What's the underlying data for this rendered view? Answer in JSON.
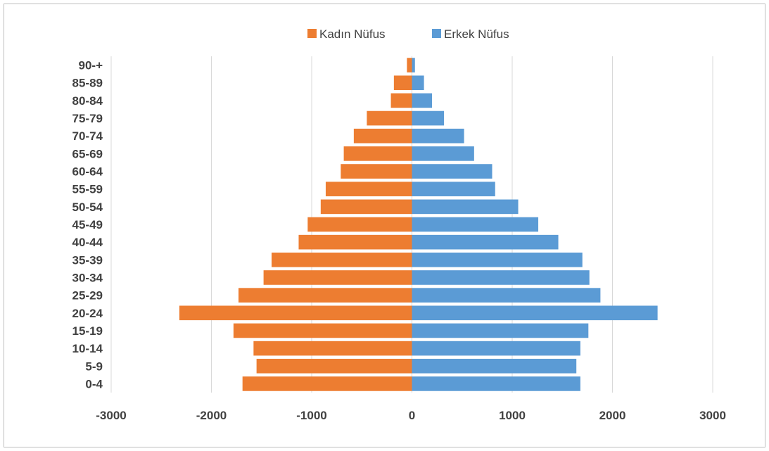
{
  "chart_data": {
    "type": "bar",
    "orientation": "horizontal",
    "categories": [
      "0-4",
      "5-9",
      "10-14",
      "15-19",
      "20-24",
      "25-29",
      "30-34",
      "35-39",
      "40-44",
      "45-49",
      "50-54",
      "55-59",
      "60-64",
      "65-69",
      "70-74",
      "75-79",
      "80-84",
      "85-89",
      "90-+"
    ],
    "series": [
      {
        "name": "Kadın Nüfus",
        "color": "#ed7d31",
        "values": [
          -1690,
          -1550,
          -1580,
          -1780,
          -2320,
          -1730,
          -1480,
          -1400,
          -1130,
          -1040,
          -910,
          -860,
          -710,
          -680,
          -580,
          -450,
          -210,
          -180,
          -50
        ]
      },
      {
        "name": "Erkek Nüfus",
        "color": "#5b9bd5",
        "values": [
          1680,
          1640,
          1680,
          1760,
          2450,
          1880,
          1770,
          1700,
          1460,
          1260,
          1060,
          830,
          800,
          620,
          520,
          320,
          200,
          120,
          30
        ]
      }
    ],
    "xlim": [
      -3000,
      3000
    ],
    "xticks": [
      "-3000",
      "-2000",
      "-1000",
      "0",
      "1000",
      "2000",
      "3000"
    ],
    "grid": true,
    "legend_position": "top"
  }
}
